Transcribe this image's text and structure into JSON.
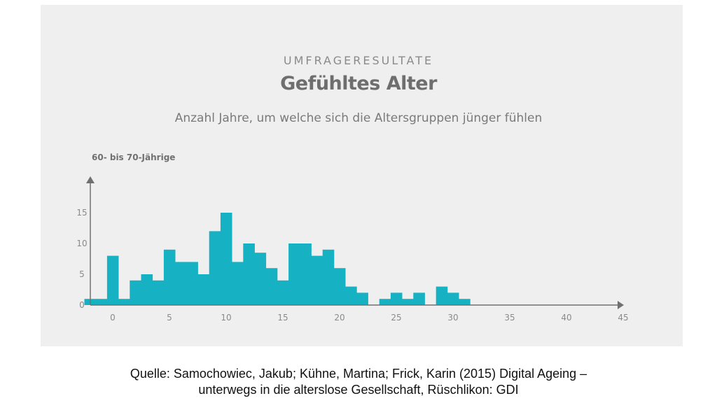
{
  "header": {
    "kicker": "UMFRAGERESULTATE",
    "title": "Gefühltes Alter",
    "subtitle": "Anzahl Jahre, um welche sich die Altersgruppen jünger fühlen"
  },
  "source": {
    "line1": "Quelle: Samochowiec, Jakub; Kühne, Martina; Frick, Karin (2015) Digital Ageing –",
    "line2": "unterwegs in die alterslose Gesellschaft, Rüschlikon: GDI"
  },
  "colors": {
    "bar": "#17b1c4",
    "axis": "#707070",
    "panel": "#efefef"
  },
  "chart_data": {
    "type": "bar",
    "series_label": "60- bis 70-Jährige",
    "x_ticks": [
      0,
      5,
      10,
      15,
      20,
      25,
      30,
      35,
      40,
      45
    ],
    "y_ticks": [
      0,
      5,
      10,
      15
    ],
    "xlim": [
      -2,
      45
    ],
    "ylim": [
      0,
      18
    ],
    "bins": [
      {
        "x": -2,
        "value": 1
      },
      {
        "x": -1,
        "value": 1
      },
      {
        "x": 0,
        "value": 8
      },
      {
        "x": 1,
        "value": 1
      },
      {
        "x": 2,
        "value": 4
      },
      {
        "x": 3,
        "value": 5
      },
      {
        "x": 4,
        "value": 4
      },
      {
        "x": 5,
        "value": 9
      },
      {
        "x": 6,
        "value": 7
      },
      {
        "x": 7,
        "value": 7
      },
      {
        "x": 8,
        "value": 5
      },
      {
        "x": 9,
        "value": 12
      },
      {
        "x": 10,
        "value": 15
      },
      {
        "x": 11,
        "value": 7
      },
      {
        "x": 12,
        "value": 10
      },
      {
        "x": 13,
        "value": 8.5
      },
      {
        "x": 14,
        "value": 6
      },
      {
        "x": 15,
        "value": 4
      },
      {
        "x": 16,
        "value": 10
      },
      {
        "x": 17,
        "value": 10
      },
      {
        "x": 18,
        "value": 8
      },
      {
        "x": 19,
        "value": 9
      },
      {
        "x": 20,
        "value": 6
      },
      {
        "x": 21,
        "value": 3
      },
      {
        "x": 22,
        "value": 2
      },
      {
        "x": 24,
        "value": 1
      },
      {
        "x": 25,
        "value": 2
      },
      {
        "x": 26,
        "value": 1
      },
      {
        "x": 27,
        "value": 2
      },
      {
        "x": 29,
        "value": 3
      },
      {
        "x": 30,
        "value": 2
      },
      {
        "x": 31,
        "value": 1
      }
    ]
  }
}
